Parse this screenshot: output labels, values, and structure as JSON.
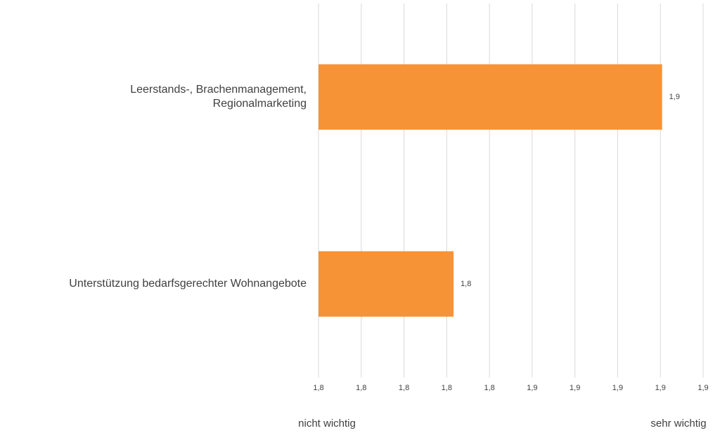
{
  "chart_data": {
    "type": "barh",
    "categories": [
      [
        "Leerstands-, Brachenmanagement,",
        "Regionalmarketing"
      ],
      [
        "Unterstützung bedarfsgerechter Wohnangebote"
      ]
    ],
    "values": [
      1.8804,
      1.8316
    ],
    "value_labels": [
      "1,9",
      "1,8"
    ],
    "color": "#f59336",
    "xlim": [
      1.8,
      1.89
    ],
    "xticks": [
      {
        "value": 1.8,
        "label": "1,8"
      },
      {
        "value": 1.81,
        "label": "1,8"
      },
      {
        "value": 1.82,
        "label": "1,8"
      },
      {
        "value": 1.83,
        "label": "1,8"
      },
      {
        "value": 1.84,
        "label": "1,8"
      },
      {
        "value": 1.85,
        "label": "1,9"
      },
      {
        "value": 1.86,
        "label": "1,9"
      },
      {
        "value": 1.87,
        "label": "1,9"
      },
      {
        "value": 1.88,
        "label": "1,9"
      },
      {
        "value": 1.89,
        "label": "1,9"
      }
    ],
    "grid": true,
    "axis_label_left": "nicht wichtig",
    "axis_label_right": "sehr wichtig"
  }
}
